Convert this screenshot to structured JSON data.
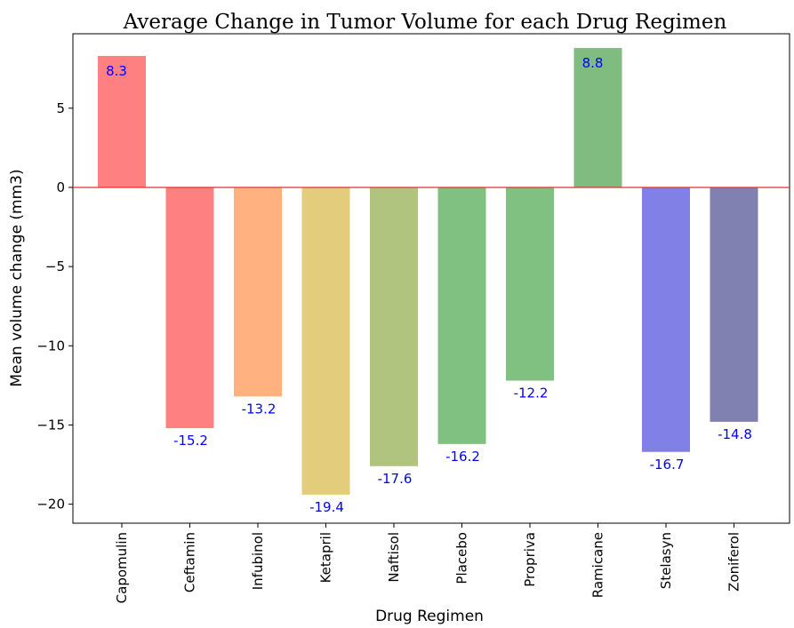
{
  "chart_data": {
    "type": "bar",
    "title": "Average Change in Tumor Volume for each Drug Regimen",
    "xlabel": "Drug Regimen",
    "ylabel": "Mean volume change (mm3)",
    "categories": [
      "Capomulin",
      "Ceftamin",
      "Infubinol",
      "Ketapril",
      "Naftisol",
      "Placebo",
      "Propriva",
      "Ramicane",
      "Stelasyn",
      "Zoniferol"
    ],
    "values": [
      8.3,
      -15.2,
      -13.2,
      -19.4,
      -17.6,
      -16.2,
      -12.2,
      8.8,
      -16.7,
      -14.8
    ],
    "data_labels": [
      "8.3",
      "-15.2",
      "-13.2",
      "-19.4",
      "-17.6",
      "-16.2",
      "-12.2",
      "8.8",
      "-16.7",
      "-14.8"
    ],
    "bar_colors": [
      "#ff8080",
      "#ff8080",
      "#ffb27f",
      "#e3cd7d",
      "#b1c47f",
      "#80c080",
      "#80c080",
      "#80bb80",
      "#8080e6",
      "#8080b1"
    ],
    "ylim": [
      -21.2,
      9.7
    ],
    "yticks": [
      5,
      0,
      -5,
      -10,
      -15,
      -20
    ],
    "ytick_labels": [
      "5",
      "0",
      "−5",
      "−10",
      "−15",
      "−20"
    ],
    "zero_line_color": "#e03030",
    "label_color": "#0000ff",
    "grid": false,
    "legend": "none"
  }
}
